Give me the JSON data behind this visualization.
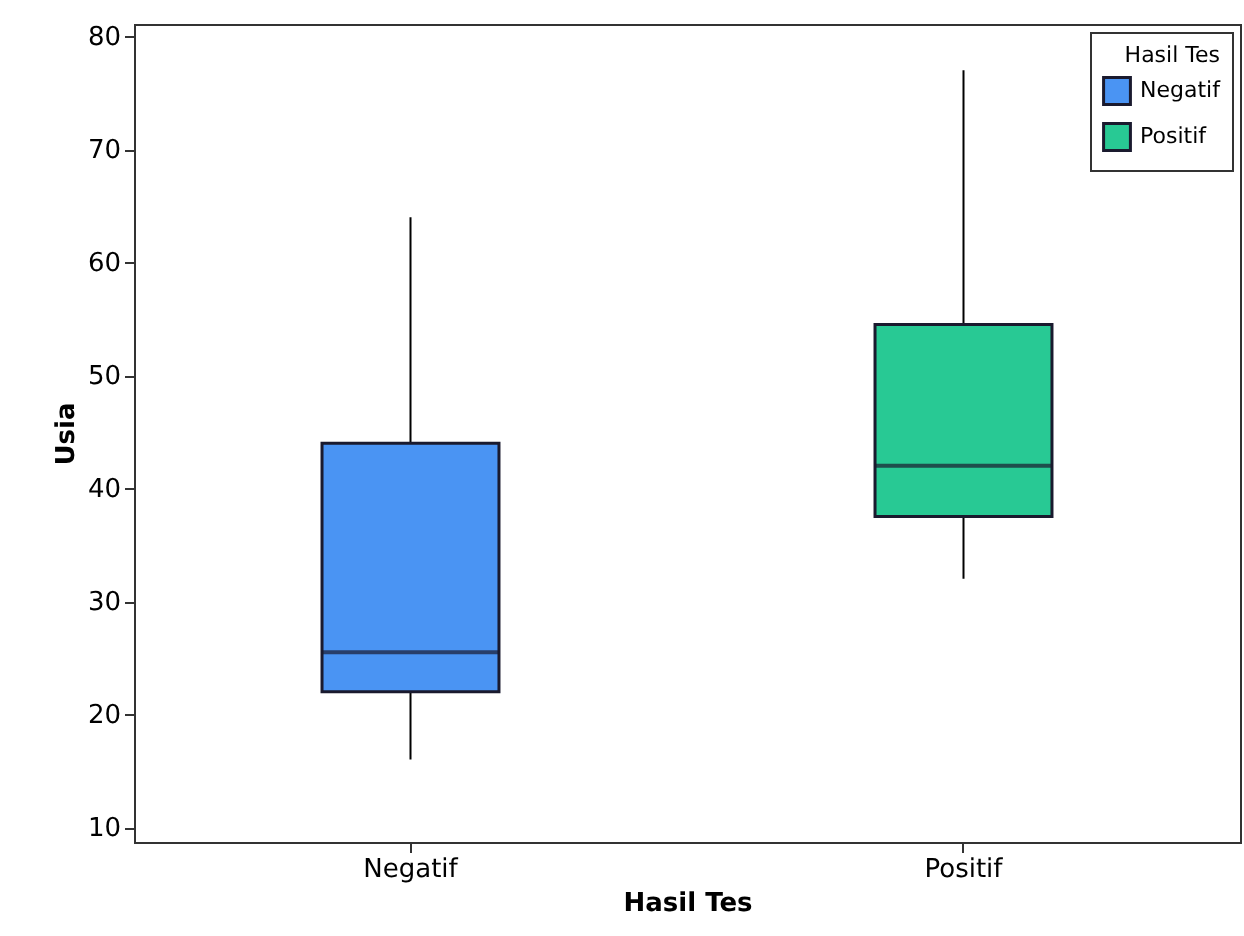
{
  "chart_data": {
    "type": "box",
    "xlabel": "Hasil Tes",
    "ylabel": "Usia",
    "legend_title": "Hasil Tes",
    "categories": [
      "Negatif",
      "Positif"
    ],
    "series": [
      {
        "name": "Negatif",
        "color": "#4a94f3",
        "boxes": [
          {
            "low": 16,
            "q1": 22,
            "median": 25.5,
            "q3": 44,
            "high": 64
          },
          null
        ]
      },
      {
        "name": "Positif",
        "color": "#28c994",
        "boxes": [
          null,
          {
            "low": 32,
            "q1": 37.5,
            "median": 42,
            "q3": 54.5,
            "high": 77
          }
        ]
      }
    ],
    "ylim": [
      8.7,
      81.1
    ],
    "yticks": [
      10,
      20,
      30,
      40,
      50,
      60,
      70,
      80
    ],
    "grid": false,
    "legend": "top right"
  }
}
